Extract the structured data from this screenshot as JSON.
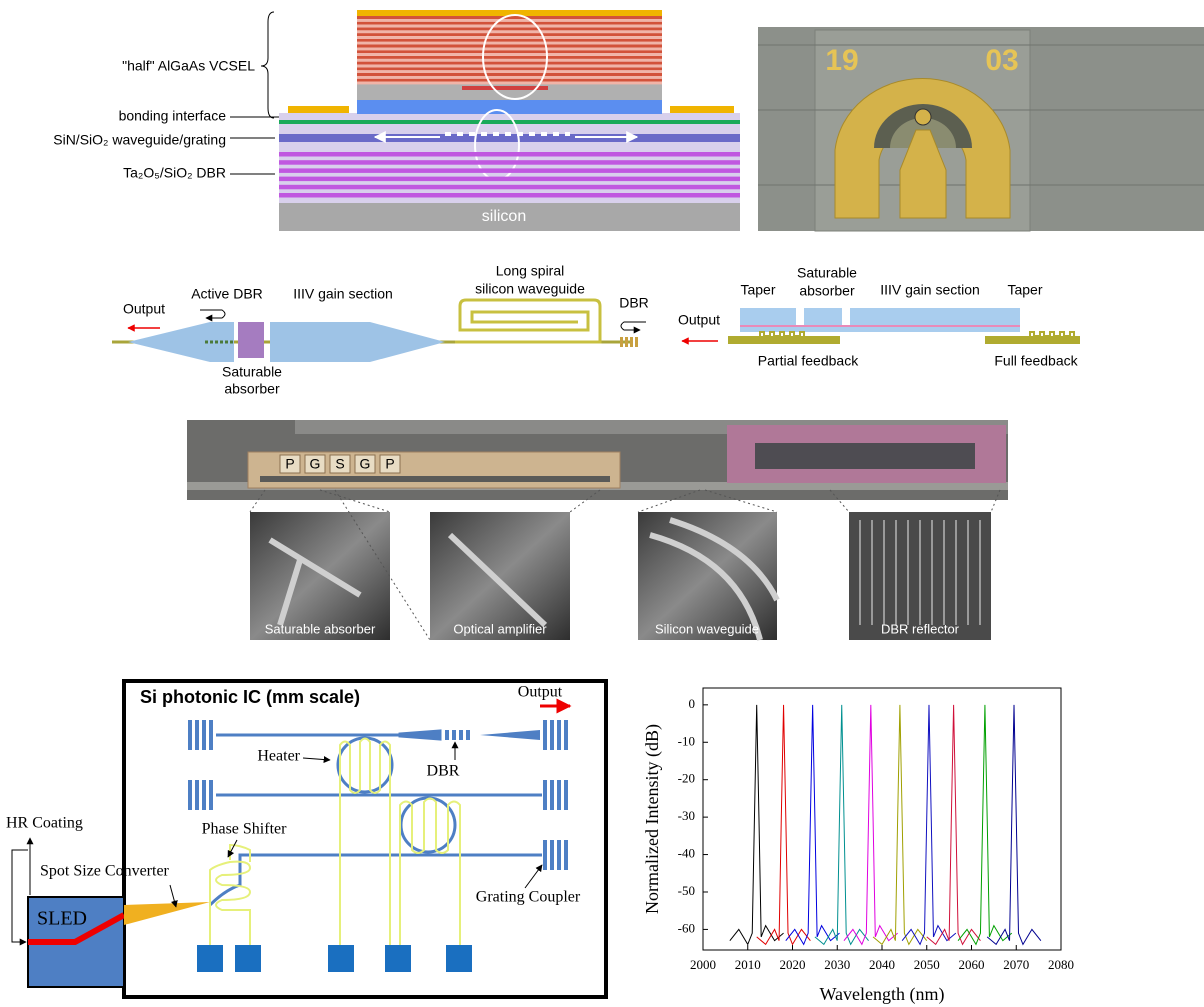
{
  "vcsel_diagram": {
    "half_vcsel": "\"half\" AlGaAs VCSEL",
    "bonding_interface": "bonding interface",
    "waveguide": "SiN/SiO₂ waveguide/grating",
    "dbr": "Ta₂O₅/SiO₂ DBR",
    "substrate": "silicon"
  },
  "die_photo": {
    "left_number": "19",
    "right_number": "03"
  },
  "laser_schematic": {
    "output_left": "Output",
    "active_dbr": "Active DBR",
    "gain_left": "IIIV gain section",
    "spiral": [
      "Long spiral",
      "silicon waveguide"
    ],
    "dbr": "DBR",
    "saturable_absorber_left": [
      "Saturable",
      "absorber"
    ],
    "taper_left": "Taper",
    "saturable_absorber_right": [
      "Saturable",
      "absorber"
    ],
    "gain_right": "IIIV gain section",
    "taper_right": "Taper",
    "output_right": "Output",
    "partial_feedback": "Partial feedback",
    "full_feedback": "Full feedback"
  },
  "chip_micrograph": {
    "pads": [
      "P",
      "G",
      "S",
      "G",
      "P"
    ],
    "sem_captions": [
      "Saturable absorber",
      "Optical amplifier",
      "Silicon waveguide",
      "DBR reflector"
    ]
  },
  "photonic_ic": {
    "title": "Si photonic IC (mm scale)",
    "output": "Output",
    "heater": "Heater",
    "dbr": "DBR",
    "phase_shifter": "Phase Shifter",
    "hr_coating": "HR Coating",
    "spot_size_converter": "Spot Size Converter",
    "grating_coupler": "Grating Coupler",
    "sled": "SLED"
  },
  "chart_data": {
    "type": "line",
    "x_label": "Wavelength (nm)",
    "y_label": "Normalized Intensity (dB)",
    "xlim": [
      2000,
      2080
    ],
    "xticks": [
      2000,
      2010,
      2020,
      2030,
      2040,
      2050,
      2060,
      2070,
      2080
    ],
    "ylim": [
      -65.5,
      4.5
    ],
    "yticks": [
      0,
      -10,
      -20,
      -30,
      -40,
      -50,
      -60
    ],
    "series": [
      {
        "color": "#000000",
        "x": [
          2006,
          2008,
          2010,
          2011,
          2011.5,
          2012,
          2012.5,
          2013,
          2014,
          2016,
          2018
        ],
        "values": [
          -63,
          -60,
          -64,
          -61,
          -30,
          0,
          -30,
          -62,
          -59,
          -63,
          -61
        ]
      },
      {
        "color": "#e00000",
        "x": [
          2012,
          2014,
          2016,
          2017,
          2017.5,
          2018,
          2018.5,
          2019,
          2020,
          2022,
          2024
        ],
        "values": [
          -62,
          -64,
          -60,
          -63,
          -30,
          0,
          -30,
          -61,
          -64,
          -60,
          -63
        ]
      },
      {
        "color": "#0000e0",
        "x": [
          2018.5,
          2020.5,
          2022.5,
          2023.5,
          2024,
          2024.5,
          2025,
          2025.5,
          2026.5,
          2028.5,
          2030.5
        ],
        "values": [
          -63,
          -60,
          -64,
          -61,
          -30,
          0,
          -30,
          -62,
          -59,
          -63,
          -61
        ]
      },
      {
        "color": "#009090",
        "x": [
          2025,
          2027,
          2029,
          2030,
          2030.5,
          2031,
          2031.5,
          2032,
          2033,
          2035,
          2037
        ],
        "values": [
          -62,
          -64,
          -60,
          -63,
          -30,
          0,
          -30,
          -61,
          -64,
          -60,
          -63
        ]
      },
      {
        "color": "#e000e0",
        "x": [
          2031.5,
          2033.5,
          2035.5,
          2036.5,
          2037,
          2037.5,
          2038,
          2038.5,
          2039.5,
          2041.5,
          2043.5
        ],
        "values": [
          -63,
          -60,
          -64,
          -61,
          -30,
          0,
          -30,
          -62,
          -59,
          -63,
          -61
        ]
      },
      {
        "color": "#a0a000",
        "x": [
          2038,
          2040,
          2042,
          2043,
          2043.5,
          2044,
          2044.5,
          2045,
          2046,
          2048,
          2050
        ],
        "values": [
          -62,
          -64,
          -60,
          -63,
          -30,
          0,
          -30,
          -61,
          -64,
          -60,
          -63
        ]
      },
      {
        "color": "#1010c0",
        "x": [
          2044.5,
          2046.5,
          2048.5,
          2049.5,
          2050,
          2050.5,
          2051,
          2051.5,
          2052.5,
          2054.5,
          2056.5
        ],
        "values": [
          -63,
          -60,
          -64,
          -61,
          -30,
          0,
          -30,
          -62,
          -59,
          -63,
          -61
        ]
      },
      {
        "color": "#d0103a",
        "x": [
          2050,
          2052,
          2054,
          2055,
          2055.5,
          2056,
          2056.5,
          2057,
          2058,
          2060,
          2062
        ],
        "values": [
          -62,
          -64,
          -60,
          -63,
          -30,
          0,
          -30,
          -61,
          -64,
          -60,
          -63
        ]
      },
      {
        "color": "#00a000",
        "x": [
          2057,
          2059,
          2061,
          2062,
          2062.5,
          2063,
          2063.5,
          2064,
          2065,
          2067,
          2069
        ],
        "values": [
          -63,
          -60,
          -64,
          -61,
          -30,
          0,
          -30,
          -62,
          -59,
          -63,
          -61
        ]
      },
      {
        "color": "#000090",
        "x": [
          2063.5,
          2065.5,
          2067.5,
          2068.5,
          2069,
          2069.5,
          2070,
          2070.5,
          2071.5,
          2073.5,
          2075.5
        ],
        "values": [
          -62,
          -64,
          -60,
          -63,
          -30,
          0,
          -30,
          -61,
          -64,
          -60,
          -63
        ]
      }
    ]
  }
}
